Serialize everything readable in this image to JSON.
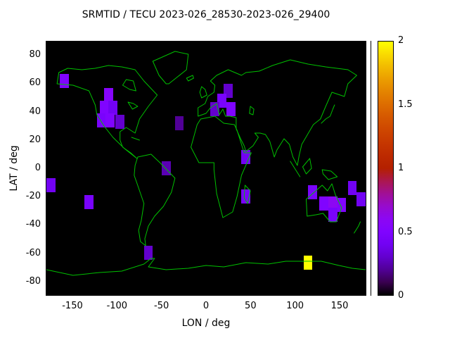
{
  "title": "SRMTID / TECU 2023-026_28530-2023-026_29400",
  "axes": {
    "x_label": "LON / deg",
    "y_label": "LAT / deg",
    "x_ticks": [
      -150,
      -100,
      -50,
      0,
      50,
      100,
      150
    ],
    "y_ticks": [
      80,
      60,
      40,
      20,
      0,
      -20,
      -40,
      -60,
      -80
    ],
    "x_range": [
      -180,
      180
    ],
    "y_range": [
      -90,
      90
    ]
  },
  "colorbar": {
    "range": [
      0,
      2
    ],
    "ticks": [
      0,
      0.5,
      1,
      1.5,
      2
    ],
    "tick_labels": [
      "0",
      "0.5",
      "1",
      "1.5",
      "2"
    ],
    "bottom_color": "#000000",
    "top_color": "#ffff00"
  },
  "map": {
    "coastline_color": "#00c000",
    "ocean_color": "#000000"
  },
  "chart_data": {
    "type": "heatmap",
    "title": "SRMTID / TECU 2023-026_28530-2023-026_29400",
    "xlabel": "LON / deg",
    "ylabel": "LAT / deg",
    "xlim": [
      -180,
      180
    ],
    "ylim": [
      -90,
      90
    ],
    "value_units": "TECU",
    "value_range": [
      0,
      2
    ],
    "cell_size_deg": {
      "lon": 10,
      "lat": 10
    },
    "palette": "gnuplot-default black-purple-red-orange-yellow",
    "cells": [
      {
        "lon": -160,
        "lat": 62,
        "value": 0.5
      },
      {
        "lon": -110,
        "lat": 52,
        "value": 0.55
      },
      {
        "lon": -115,
        "lat": 43,
        "value": 0.5
      },
      {
        "lon": -105,
        "lat": 43,
        "value": 0.4
      },
      {
        "lon": -118,
        "lat": 34,
        "value": 0.45
      },
      {
        "lon": -108,
        "lat": 34,
        "value": 0.5
      },
      {
        "lon": -97,
        "lat": 33,
        "value": 0.3
      },
      {
        "lon": -30,
        "lat": 32,
        "value": 0.2
      },
      {
        "lon": 25,
        "lat": 55,
        "value": 0.3
      },
      {
        "lon": 18,
        "lat": 48,
        "value": 0.45
      },
      {
        "lon": 10,
        "lat": 42,
        "value": 0.3
      },
      {
        "lon": 28,
        "lat": 42,
        "value": 0.5
      },
      {
        "lon": 45,
        "lat": 8,
        "value": 0.4
      },
      {
        "lon": -45,
        "lat": 0,
        "value": 0.25
      },
      {
        "lon": -175,
        "lat": -12,
        "value": 0.4
      },
      {
        "lon": -132,
        "lat": -24,
        "value": 0.45
      },
      {
        "lon": 45,
        "lat": -20,
        "value": 0.45
      },
      {
        "lon": 120,
        "lat": -17,
        "value": 0.45
      },
      {
        "lon": 165,
        "lat": -14,
        "value": 0.4
      },
      {
        "lon": 133,
        "lat": -25,
        "value": 0.5
      },
      {
        "lon": 143,
        "lat": -25,
        "value": 0.6
      },
      {
        "lon": 153,
        "lat": -26,
        "value": 0.5
      },
      {
        "lon": 143,
        "lat": -33,
        "value": 0.45
      },
      {
        "lon": 175,
        "lat": -22,
        "value": 0.4
      },
      {
        "lon": -65,
        "lat": -60,
        "value": 0.3
      },
      {
        "lon": 115,
        "lat": -67,
        "value": 2.0
      }
    ]
  }
}
